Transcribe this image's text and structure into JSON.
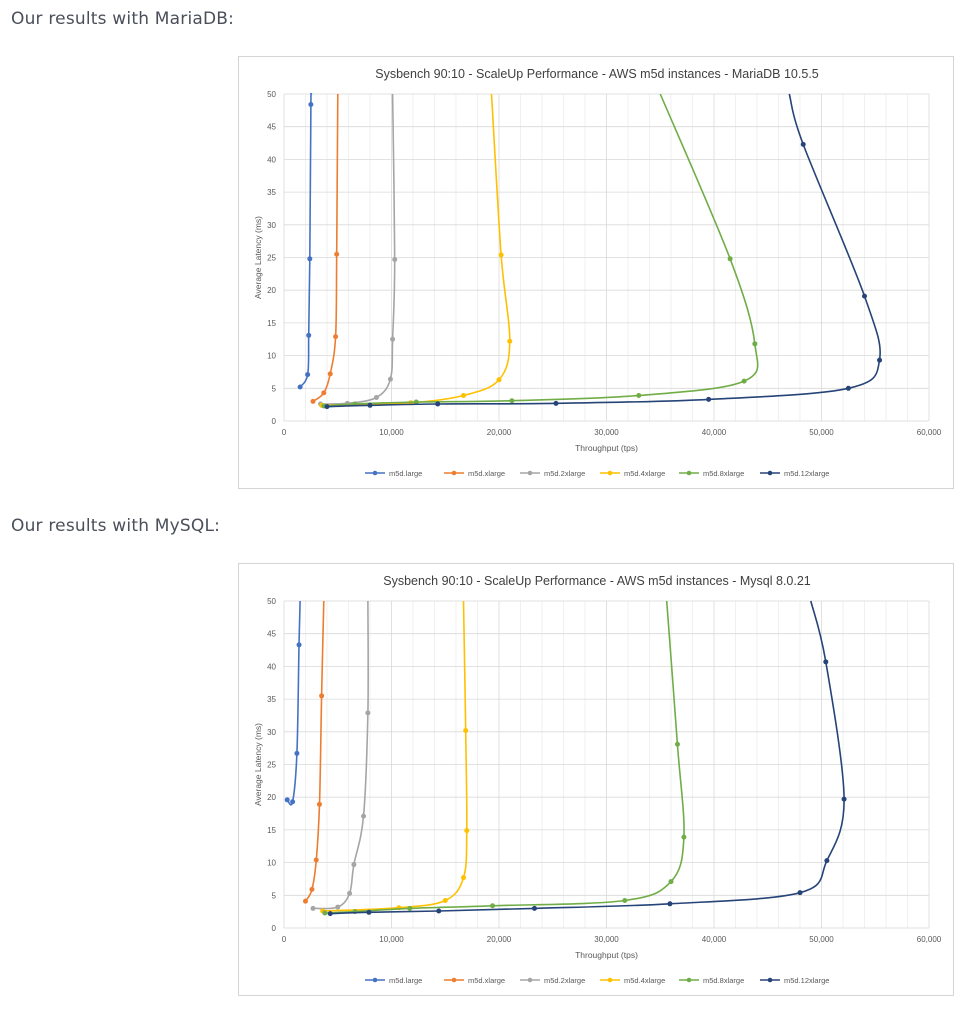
{
  "headings": [
    "Our results with MariaDB:",
    "Our results with MySQL:"
  ],
  "chart_data": [
    {
      "type": "line",
      "title": "Sysbench 90:10 - ScaleUp Performance - AWS m5d instances - MariaDB 10.5.5",
      "xlabel": "Throughput (tps)",
      "ylabel": "Average Latency (ms)",
      "xlim": [
        0,
        60000
      ],
      "ylim": [
        0,
        50
      ],
      "xticks": [
        0,
        10000,
        20000,
        30000,
        40000,
        50000,
        60000
      ],
      "xtick_labels": [
        "0",
        "10,000",
        "20,000",
        "30,000",
        "40,000",
        "50,000",
        "60,000"
      ],
      "yticks": [
        0,
        5,
        10,
        15,
        20,
        25,
        30,
        35,
        40,
        45,
        50
      ],
      "grid": true,
      "legend": "bottom",
      "series": [
        {
          "name": "m5d.large",
          "color": "#4472c4",
          "points": [
            [
              1500,
              5.2
            ],
            [
              2200,
              7.1
            ],
            [
              2300,
              13.1
            ],
            [
              2400,
              24.8
            ],
            [
              2500,
              48.4
            ]
          ],
          "curve": [
            [
              1500,
              5.2
            ],
            [
              2200,
              7.1
            ],
            [
              2300,
              13.1
            ],
            [
              2400,
              24.8
            ],
            [
              2500,
              48.4
            ],
            [
              2550,
              50
            ]
          ]
        },
        {
          "name": "m5d.xlarge",
          "color": "#ed7d31",
          "points": [
            [
              2700,
              3.0
            ],
            [
              3700,
              4.3
            ],
            [
              4300,
              7.2
            ],
            [
              4800,
              12.9
            ],
            [
              4900,
              25.5
            ]
          ],
          "curve": [
            [
              2700,
              3.0
            ],
            [
              3700,
              4.3
            ],
            [
              4300,
              7.2
            ],
            [
              4800,
              12.9
            ],
            [
              4900,
              25.5
            ],
            [
              5000,
              50
            ]
          ]
        },
        {
          "name": "m5d.2xlarge",
          "color": "#a5a5a5",
          "points": [
            [
              3400,
              2.6
            ],
            [
              5900,
              2.7
            ],
            [
              8600,
              3.6
            ],
            [
              9900,
              6.4
            ],
            [
              10100,
              12.5
            ],
            [
              10300,
              24.7
            ]
          ],
          "curve": [
            [
              3400,
              2.6
            ],
            [
              5900,
              2.7
            ],
            [
              8600,
              3.6
            ],
            [
              9900,
              6.4
            ],
            [
              10100,
              12.5
            ],
            [
              10300,
              24.7
            ],
            [
              10100,
              50
            ]
          ]
        },
        {
          "name": "m5d.4xlarge",
          "color": "#ffc000",
          "points": [
            [
              3500,
              2.4
            ],
            [
              11800,
              2.8
            ],
            [
              16700,
              3.9
            ],
            [
              20000,
              6.3
            ],
            [
              21000,
              12.2
            ],
            [
              20200,
              25.4
            ]
          ],
          "curve": [
            [
              3500,
              2.4
            ],
            [
              11800,
              2.8
            ],
            [
              16700,
              3.9
            ],
            [
              20000,
              6.3
            ],
            [
              21000,
              12.2
            ],
            [
              20200,
              25.4
            ],
            [
              19300,
              50
            ]
          ]
        },
        {
          "name": "m5d.8xlarge",
          "color": "#70ad47",
          "points": [
            [
              3700,
              2.3
            ],
            [
              6600,
              2.6
            ],
            [
              12300,
              2.9
            ],
            [
              21200,
              3.1
            ],
            [
              33000,
              3.9
            ],
            [
              42800,
              6.1
            ],
            [
              43800,
              11.8
            ],
            [
              41500,
              24.8
            ]
          ],
          "curve": [
            [
              3700,
              2.3
            ],
            [
              6600,
              2.6
            ],
            [
              12300,
              2.9
            ],
            [
              21200,
              3.1
            ],
            [
              33000,
              3.9
            ],
            [
              42800,
              6.1
            ],
            [
              43800,
              11.8
            ],
            [
              41500,
              24.8
            ],
            [
              35000,
              50
            ]
          ]
        },
        {
          "name": "m5d.12xlarge",
          "color": "#264478",
          "points": [
            [
              4000,
              2.2
            ],
            [
              8000,
              2.4
            ],
            [
              14300,
              2.6
            ],
            [
              25300,
              2.7
            ],
            [
              39500,
              3.3
            ],
            [
              52500,
              5.0
            ],
            [
              55400,
              9.3
            ],
            [
              54000,
              19.1
            ],
            [
              48300,
              42.3
            ]
          ],
          "curve": [
            [
              4000,
              2.2
            ],
            [
              8000,
              2.4
            ],
            [
              14300,
              2.6
            ],
            [
              25300,
              2.7
            ],
            [
              39500,
              3.3
            ],
            [
              52500,
              5.0
            ],
            [
              55400,
              9.3
            ],
            [
              54000,
              19.1
            ],
            [
              48300,
              42.3
            ],
            [
              47000,
              50
            ]
          ]
        }
      ]
    },
    {
      "type": "line",
      "title": "Sysbench 90:10 - ScaleUp Performance - AWS m5d instances - Mysql 8.0.21",
      "xlabel": "Throughput (tps)",
      "ylabel": "Average Latency (ms)",
      "xlim": [
        0,
        60000
      ],
      "ylim": [
        0,
        50
      ],
      "xticks": [
        0,
        10000,
        20000,
        30000,
        40000,
        50000,
        60000
      ],
      "xtick_labels": [
        "0",
        "10,000",
        "20,000",
        "30,000",
        "40,000",
        "50,000",
        "60,000"
      ],
      "yticks": [
        0,
        5,
        10,
        15,
        20,
        25,
        30,
        35,
        40,
        45,
        50
      ],
      "grid": true,
      "legend": "bottom",
      "series": [
        {
          "name": "m5d.large",
          "color": "#4472c4",
          "points": [
            [
              300,
              19.6
            ],
            [
              800,
              19.3
            ],
            [
              1200,
              26.7
            ],
            [
              1400,
              43.3
            ]
          ],
          "curve": [
            [
              300,
              19.6
            ],
            [
              800,
              19.3
            ],
            [
              1200,
              26.7
            ],
            [
              1400,
              43.3
            ],
            [
              1500,
              50
            ]
          ]
        },
        {
          "name": "m5d.xlarge",
          "color": "#ed7d31",
          "points": [
            [
              2000,
              4.1
            ],
            [
              2600,
              5.9
            ],
            [
              3000,
              10.4
            ],
            [
              3300,
              18.9
            ],
            [
              3500,
              35.5
            ]
          ],
          "curve": [
            [
              2000,
              4.1
            ],
            [
              2600,
              5.9
            ],
            [
              3000,
              10.4
            ],
            [
              3300,
              18.9
            ],
            [
              3500,
              35.5
            ],
            [
              3700,
              50
            ]
          ]
        },
        {
          "name": "m5d.2xlarge",
          "color": "#a5a5a5",
          "points": [
            [
              2700,
              3.0
            ],
            [
              5000,
              3.2
            ],
            [
              6100,
              5.3
            ],
            [
              6500,
              9.7
            ],
            [
              7400,
              17.1
            ],
            [
              7800,
              32.9
            ]
          ],
          "curve": [
            [
              2700,
              3.0
            ],
            [
              5000,
              3.2
            ],
            [
              6100,
              5.3
            ],
            [
              6500,
              9.7
            ],
            [
              7400,
              17.1
            ],
            [
              7800,
              32.9
            ],
            [
              7800,
              50
            ]
          ]
        },
        {
          "name": "m5d.4xlarge",
          "color": "#ffc000",
          "points": [
            [
              3600,
              2.6
            ],
            [
              10700,
              3.1
            ],
            [
              15000,
              4.2
            ],
            [
              16700,
              7.7
            ],
            [
              17000,
              14.9
            ],
            [
              16900,
              30.2
            ]
          ],
          "curve": [
            [
              3600,
              2.6
            ],
            [
              10700,
              3.1
            ],
            [
              15000,
              4.2
            ],
            [
              16700,
              7.7
            ],
            [
              17000,
              14.9
            ],
            [
              16900,
              30.2
            ],
            [
              16700,
              50
            ]
          ]
        },
        {
          "name": "m5d.8xlarge",
          "color": "#70ad47",
          "points": [
            [
              3800,
              2.3
            ],
            [
              6600,
              2.5
            ],
            [
              11700,
              3.0
            ],
            [
              19400,
              3.4
            ],
            [
              31700,
              4.2
            ],
            [
              36000,
              7.1
            ],
            [
              37200,
              13.9
            ],
            [
              36600,
              28.1
            ]
          ],
          "curve": [
            [
              3800,
              2.3
            ],
            [
              6600,
              2.5
            ],
            [
              11700,
              3.0
            ],
            [
              19400,
              3.4
            ],
            [
              31700,
              4.2
            ],
            [
              36000,
              7.1
            ],
            [
              37200,
              13.9
            ],
            [
              36600,
              28.1
            ],
            [
              35600,
              50
            ]
          ]
        },
        {
          "name": "m5d.12xlarge",
          "color": "#264478",
          "points": [
            [
              4300,
              2.2
            ],
            [
              7900,
              2.4
            ],
            [
              14400,
              2.6
            ],
            [
              23300,
              3.0
            ],
            [
              35900,
              3.7
            ],
            [
              48000,
              5.4
            ],
            [
              50500,
              10.3
            ],
            [
              52100,
              19.7
            ],
            [
              50400,
              40.7
            ]
          ],
          "curve": [
            [
              4300,
              2.2
            ],
            [
              7900,
              2.4
            ],
            [
              14400,
              2.6
            ],
            [
              23300,
              3.0
            ],
            [
              35900,
              3.7
            ],
            [
              48000,
              5.4
            ],
            [
              50500,
              10.3
            ],
            [
              52100,
              19.7
            ],
            [
              50400,
              40.7
            ],
            [
              49000,
              50
            ]
          ]
        }
      ]
    }
  ]
}
